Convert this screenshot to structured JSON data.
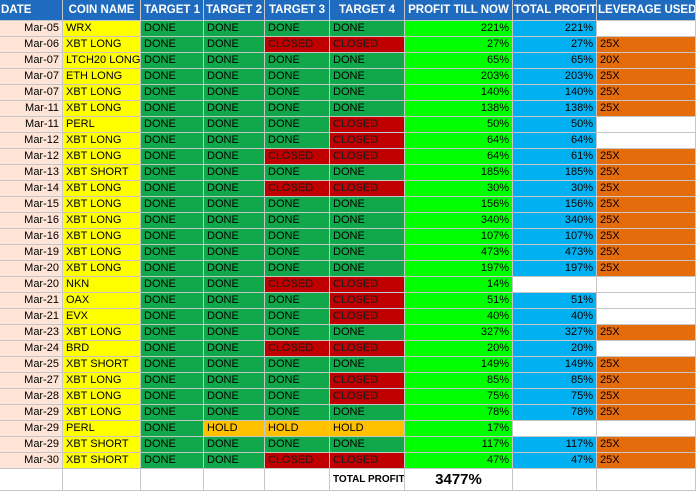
{
  "headers": [
    "DATE",
    "COIN NAME",
    "TARGET 1",
    "TARGET 2",
    "TARGET 3",
    "TARGET 4",
    "PROFIT TILL NOW",
    "TOTAL PROFIT",
    "LEVERAGE USED"
  ],
  "colors": {
    "header": "#1f6bbf",
    "date": "#fde4d6",
    "coin": "#ffff00",
    "done": "#10a84a",
    "closed": "#c00000",
    "hold": "#ffc000",
    "profit": "#00ff00",
    "total": "#00b0f0",
    "leverage": "#e46c0a"
  },
  "rows": [
    {
      "date": "Mar-05",
      "coin": "WRX",
      "t1": "DONE",
      "t2": "DONE",
      "t3": "DONE",
      "t4": "DONE",
      "profit": "221%",
      "total": "221%",
      "leverage": ""
    },
    {
      "date": "Mar-06",
      "coin": "XBT LONG",
      "t1": "DONE",
      "t2": "DONE",
      "t3": "CLOSED",
      "t4": "CLOSED",
      "profit": "27%",
      "total": "27%",
      "leverage": "25X"
    },
    {
      "date": "Mar-07",
      "coin": "LTCH20 LONG",
      "t1": "DONE",
      "t2": "DONE",
      "t3": "DONE",
      "t4": "DONE",
      "profit": "65%",
      "total": "65%",
      "leverage": "20X"
    },
    {
      "date": "Mar-07",
      "coin": "ETH LONG",
      "t1": "DONE",
      "t2": "DONE",
      "t3": "DONE",
      "t4": "DONE",
      "profit": "203%",
      "total": "203%",
      "leverage": "25X"
    },
    {
      "date": "Mar-07",
      "coin": "XBT LONG",
      "t1": "DONE",
      "t2": "DONE",
      "t3": "DONE",
      "t4": "DONE",
      "profit": "140%",
      "total": "140%",
      "leverage": "25X"
    },
    {
      "date": "Mar-11",
      "coin": "XBT LONG",
      "t1": "DONE",
      "t2": "DONE",
      "t3": "DONE",
      "t4": "DONE",
      "profit": "138%",
      "total": "138%",
      "leverage": "25X"
    },
    {
      "date": "Mar-11",
      "coin": "PERL",
      "t1": "DONE",
      "t2": "DONE",
      "t3": "DONE",
      "t4": "CLOSED",
      "profit": "50%",
      "total": "50%",
      "leverage": ""
    },
    {
      "date": "Mar-12",
      "coin": "XBT LONG",
      "t1": "DONE",
      "t2": "DONE",
      "t3": "DONE",
      "t4": "CLOSED",
      "profit": "64%",
      "total": "64%",
      "leverage": ""
    },
    {
      "date": "Mar-12",
      "coin": "XBT LONG",
      "t1": "DONE",
      "t2": "DONE",
      "t3": "CLOSED",
      "t4": "CLOSED",
      "profit": "64%",
      "total": "61%",
      "leverage": "25X"
    },
    {
      "date": "Mar-13",
      "coin": "XBT SHORT",
      "t1": "DONE",
      "t2": "DONE",
      "t3": "DONE",
      "t4": "DONE",
      "profit": "185%",
      "total": "185%",
      "leverage": "25X"
    },
    {
      "date": "Mar-14",
      "coin": "XBT LONG",
      "t1": "DONE",
      "t2": "DONE",
      "t3": "CLOSED",
      "t4": "CLOSED",
      "profit": "30%",
      "total": "30%",
      "leverage": "25X"
    },
    {
      "date": "Mar-15",
      "coin": "XBT LONG",
      "t1": "DONE",
      "t2": "DONE",
      "t3": "DONE",
      "t4": "DONE",
      "profit": "156%",
      "total": "156%",
      "leverage": "25X"
    },
    {
      "date": "Mar-16",
      "coin": "XBT LONG",
      "t1": "DONE",
      "t2": "DONE",
      "t3": "DONE",
      "t4": "DONE",
      "profit": "340%",
      "total": "340%",
      "leverage": "25X"
    },
    {
      "date": "Mar-16",
      "coin": "XBT LONG",
      "t1": "DONE",
      "t2": "DONE",
      "t3": "DONE",
      "t4": "DONE",
      "profit": "107%",
      "total": "107%",
      "leverage": "25X"
    },
    {
      "date": "Mar-19",
      "coin": "XBT LONG",
      "t1": "DONE",
      "t2": "DONE",
      "t3": "DONE",
      "t4": "DONE",
      "profit": "473%",
      "total": "473%",
      "leverage": "25X"
    },
    {
      "date": "Mar-20",
      "coin": "XBT LONG",
      "t1": "DONE",
      "t2": "DONE",
      "t3": "DONE",
      "t4": "DONE",
      "profit": "197%",
      "total": "197%",
      "leverage": "25X"
    },
    {
      "date": "Mar-20",
      "coin": "NKN",
      "t1": "DONE",
      "t2": "DONE",
      "t3": "CLOSED",
      "t4": "CLOSED",
      "profit": "14%",
      "total": "",
      "leverage": ""
    },
    {
      "date": "Mar-21",
      "coin": "OAX",
      "t1": "DONE",
      "t2": "DONE",
      "t3": "DONE",
      "t4": "CLOSED",
      "profit": "51%",
      "total": "51%",
      "leverage": ""
    },
    {
      "date": "Mar-21",
      "coin": "EVX",
      "t1": "DONE",
      "t2": "DONE",
      "t3": "DONE",
      "t4": "CLOSED",
      "profit": "40%",
      "total": "40%",
      "leverage": ""
    },
    {
      "date": "Mar-23",
      "coin": "XBT LONG",
      "t1": "DONE",
      "t2": "DONE",
      "t3": "DONE",
      "t4": "DONE",
      "profit": "327%",
      "total": "327%",
      "leverage": "25X"
    },
    {
      "date": "Mar-24",
      "coin": "BRD",
      "t1": "DONE",
      "t2": "DONE",
      "t3": "CLOSED",
      "t4": "CLOSED",
      "profit": "20%",
      "total": "20%",
      "leverage": ""
    },
    {
      "date": "Mar-25",
      "coin": "XBT SHORT",
      "t1": "DONE",
      "t2": "DONE",
      "t3": "DONE",
      "t4": "DONE",
      "profit": "149%",
      "total": "149%",
      "leverage": "25X"
    },
    {
      "date": "Mar-27",
      "coin": "XBT LONG",
      "t1": "DONE",
      "t2": "DONE",
      "t3": "DONE",
      "t4": "CLOSED",
      "profit": "85%",
      "total": "85%",
      "leverage": "25X"
    },
    {
      "date": "Mar-28",
      "coin": "XBT LONG",
      "t1": "DONE",
      "t2": "DONE",
      "t3": "DONE",
      "t4": "CLOSED",
      "profit": "75%",
      "total": "75%",
      "leverage": "25X"
    },
    {
      "date": "Mar-29",
      "coin": "XBT LONG",
      "t1": "DONE",
      "t2": "DONE",
      "t3": "DONE",
      "t4": "DONE",
      "profit": "78%",
      "total": "78%",
      "leverage": "25X"
    },
    {
      "date": "Mar-29",
      "coin": "PERL",
      "t1": "DONE",
      "t2": "HOLD",
      "t3": "HOLD",
      "t4": "HOLD",
      "profit": "17%",
      "total": "",
      "leverage": ""
    },
    {
      "date": "Mar-29",
      "coin": "XBT SHORT",
      "t1": "DONE",
      "t2": "DONE",
      "t3": "DONE",
      "t4": "DONE",
      "profit": "117%",
      "total": "117%",
      "leverage": "25X"
    },
    {
      "date": "Mar-30",
      "coin": "XBT SHORT",
      "t1": "DONE",
      "t2": "DONE",
      "t3": "CLOSED",
      "t4": "CLOSED",
      "profit": "47%",
      "total": "47%",
      "leverage": "25X"
    }
  ],
  "footer": {
    "label": "TOTAL PROFIT",
    "value": "3477%"
  }
}
